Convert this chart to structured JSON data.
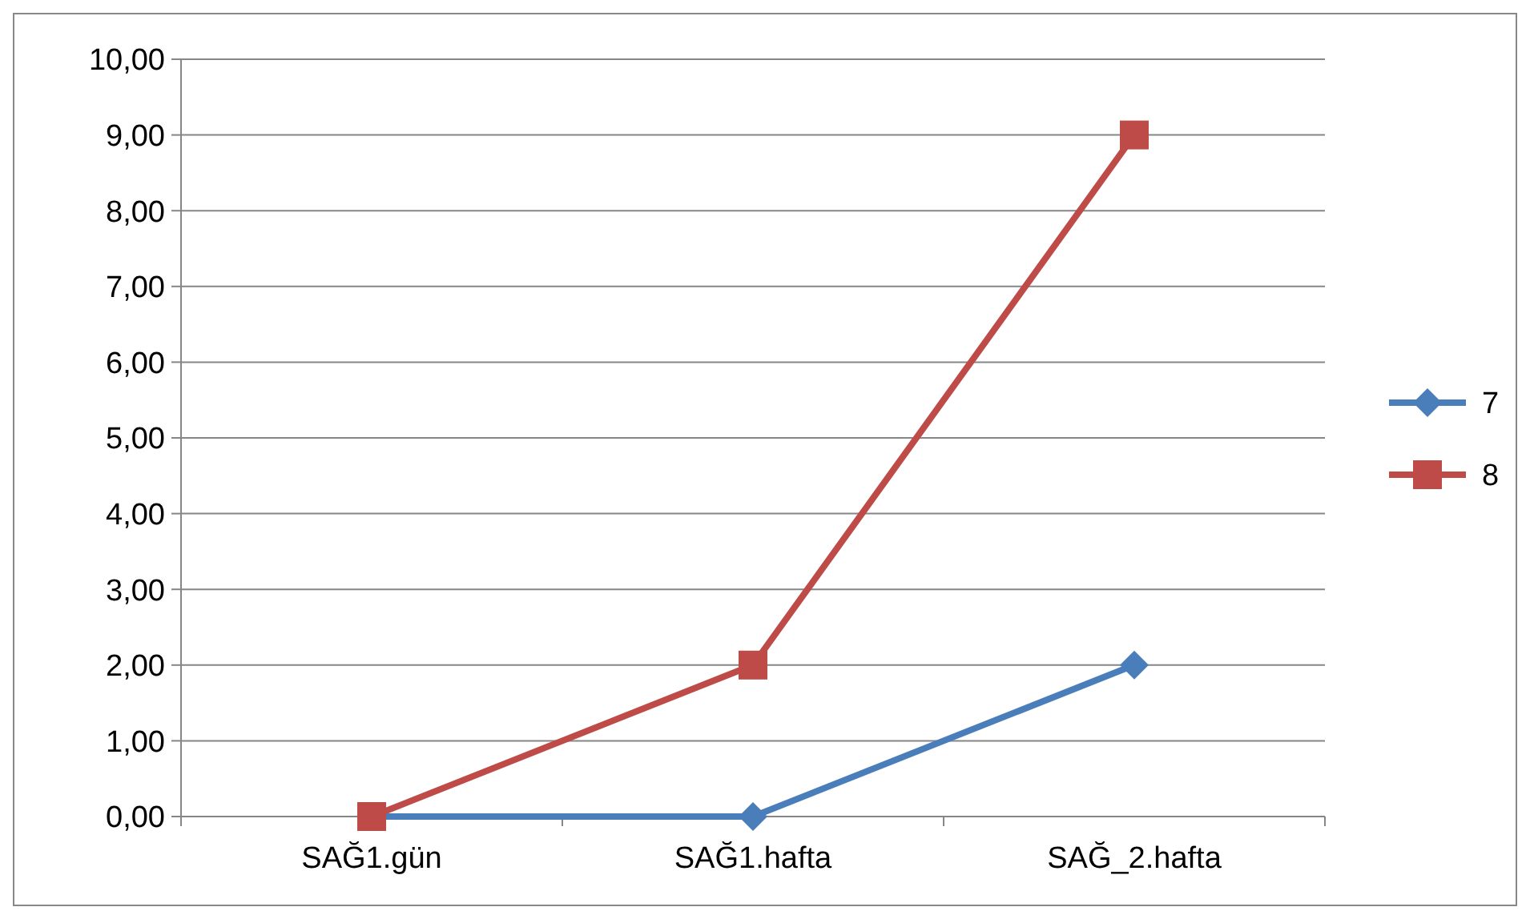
{
  "chart_data": {
    "type": "line",
    "categories": [
      "SAĞ1.gün",
      "SAĞ1.hafta",
      "SAĞ_2.hafta"
    ],
    "series": [
      {
        "name": "7",
        "color": "#4a7ebb",
        "values": [
          0,
          0,
          2
        ],
        "marker": "diamond"
      },
      {
        "name": "8",
        "color": "#be4b48",
        "values": [
          0,
          2,
          9
        ],
        "marker": "square"
      }
    ],
    "ylim": [
      0,
      10
    ],
    "yticks": [
      {
        "value": 0,
        "label": "0,00"
      },
      {
        "value": 1,
        "label": "1,00"
      },
      {
        "value": 2,
        "label": "2,00"
      },
      {
        "value": 3,
        "label": "3,00"
      },
      {
        "value": 4,
        "label": "4,00"
      },
      {
        "value": 5,
        "label": "5,00"
      },
      {
        "value": 6,
        "label": "6,00"
      },
      {
        "value": 7,
        "label": "7,00"
      },
      {
        "value": 8,
        "label": "8,00"
      },
      {
        "value": 9,
        "label": "9,00"
      },
      {
        "value": 10,
        "label": "10,00"
      }
    ],
    "grid": "y",
    "legend": "right",
    "line_style": "solid"
  }
}
